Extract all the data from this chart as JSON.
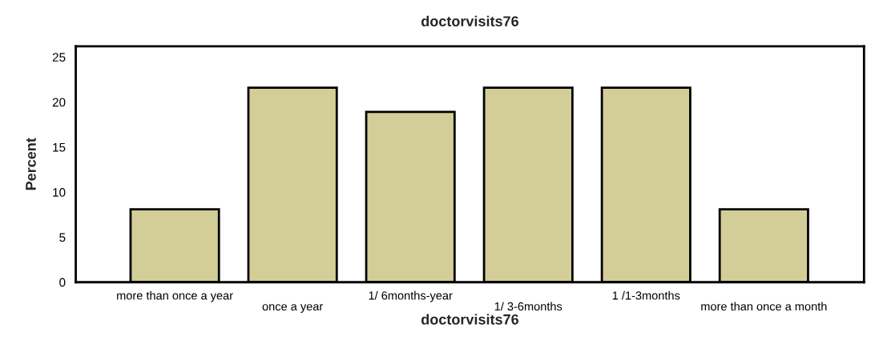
{
  "chart_data": {
    "type": "bar",
    "title": "doctorvisits76",
    "xlabel": "doctorvisits76",
    "ylabel": "Percent",
    "categories": [
      "more than once a year",
      "once a year",
      "1/ 6months-year",
      "1/ 3-6months",
      "1 /1-3months",
      "more than once a month"
    ],
    "values": [
      8.1,
      21.6,
      18.9,
      21.6,
      21.6,
      8.1
    ],
    "color": "#d3ce98",
    "ylim": [
      0,
      26.2
    ],
    "yticks": [
      0,
      5,
      10,
      15,
      20,
      25
    ],
    "grid": false,
    "legend": false
  }
}
